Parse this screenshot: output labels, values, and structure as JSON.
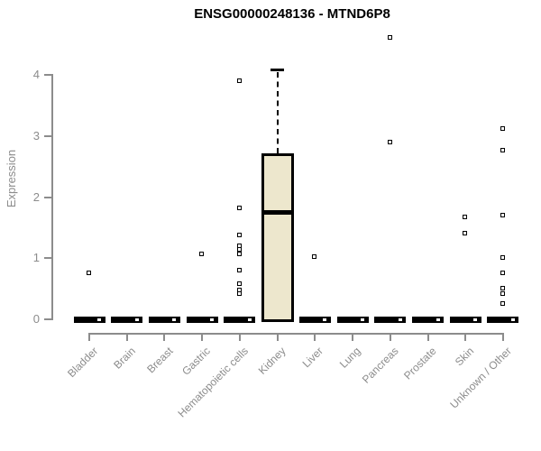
{
  "chart_data": {
    "type": "boxplot",
    "title": "ENSG00000248136 - MTND6P8",
    "ylabel": "Expression",
    "xlabel": "",
    "ylim": [
      0,
      4
    ],
    "yticks": [
      0,
      1,
      2,
      3,
      4
    ],
    "grid": false,
    "legend": null,
    "x_tick_rotation_deg": 45,
    "categories": [
      "Bladder",
      "Brain",
      "Breast",
      "Gastric",
      "Hematopoietic cells",
      "Kidney",
      "Liver",
      "Lung",
      "Pancreas",
      "Prostate",
      "Skin",
      "Unknown / Other"
    ],
    "series": [
      {
        "category": "Bladder",
        "whisker_low": 0,
        "q1": 0,
        "median": 0,
        "q3": 0,
        "whisker_high": 0,
        "outliers": [
          0.76
        ]
      },
      {
        "category": "Brain",
        "whisker_low": 0,
        "q1": 0,
        "median": 0,
        "q3": 0,
        "whisker_high": 0,
        "outliers": []
      },
      {
        "category": "Breast",
        "whisker_low": 0,
        "q1": 0,
        "median": 0,
        "q3": 0,
        "whisker_high": 0,
        "outliers": []
      },
      {
        "category": "Gastric",
        "whisker_low": 0,
        "q1": 0,
        "median": 0,
        "q3": 0,
        "whisker_high": 0,
        "outliers": [
          1.06
        ]
      },
      {
        "category": "Hematopoietic cells",
        "whisker_low": 0,
        "q1": 0,
        "median": 0,
        "q3": 0,
        "whisker_high": 0,
        "outliers": [
          3.9,
          1.82,
          1.37,
          1.2,
          1.14,
          1.06,
          0.8,
          0.58,
          0.47,
          0.41
        ]
      },
      {
        "category": "Kidney",
        "whisker_low": 0,
        "q1": 0,
        "median": 1.76,
        "q3": 2.68,
        "whisker_high": 4.07,
        "outliers": []
      },
      {
        "category": "Liver",
        "whisker_low": 0,
        "q1": 0,
        "median": 0,
        "q3": 0,
        "whisker_high": 0,
        "outliers": [
          1.02
        ]
      },
      {
        "category": "Lung",
        "whisker_low": 0,
        "q1": 0,
        "median": 0,
        "q3": 0,
        "whisker_high": 0,
        "outliers": []
      },
      {
        "category": "Pancreas",
        "whisker_low": 0,
        "q1": 0,
        "median": 0,
        "q3": 0,
        "whisker_high": 0,
        "outliers": [
          4.61,
          2.89
        ]
      },
      {
        "category": "Prostate",
        "whisker_low": 0,
        "q1": 0,
        "median": 0,
        "q3": 0,
        "whisker_high": 0,
        "outliers": []
      },
      {
        "category": "Skin",
        "whisker_low": 0,
        "q1": 0,
        "median": 0,
        "q3": 0,
        "whisker_high": 0,
        "outliers": [
          1.67,
          1.4
        ]
      },
      {
        "category": "Unknown / Other",
        "whisker_low": 0,
        "q1": 0,
        "median": 0,
        "q3": 0,
        "whisker_high": 0,
        "outliers": [
          3.11,
          2.76,
          1.7,
          1.0,
          0.75,
          0.5,
          0.41,
          0.25
        ]
      }
    ],
    "colors": {
      "background": "#FFFFFF",
      "title": "#000000",
      "axis": "#8C8C8C",
      "tick_label": "#8C8C8C",
      "box_fill": "#EDE7CD",
      "box_border": "#000000",
      "median": "#000000",
      "outlier_fill": "#FFFFFF",
      "outlier_border": "#000000"
    }
  }
}
